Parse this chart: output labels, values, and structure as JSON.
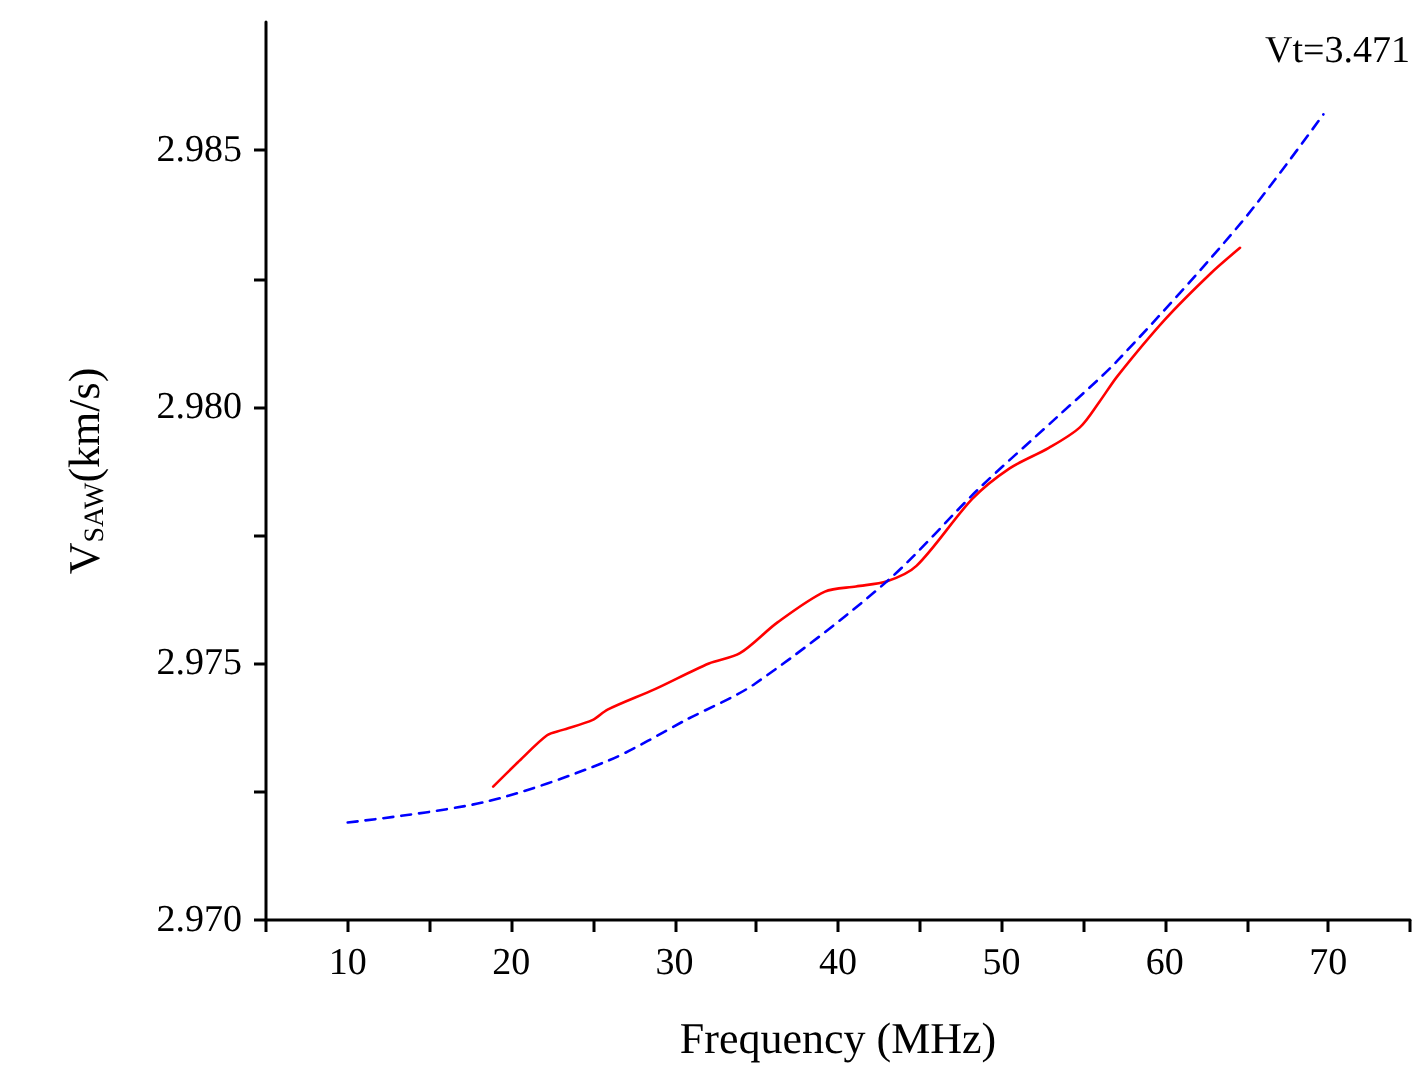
{
  "chart_data": {
    "type": "line",
    "xlabel": "Frequency (MHz)",
    "ylabel": "V$_{SAW}$(km/s)",
    "annotations": [
      "Vt=3.471"
    ],
    "xlim": [
      5,
      75
    ],
    "xticks": [
      {
        "value": 5,
        "label": null
      },
      10,
      {
        "value": 15,
        "label": null
      },
      20,
      {
        "value": 25,
        "label": null
      },
      30,
      {
        "value": 35,
        "label": null
      },
      40,
      {
        "value": 45,
        "label": null
      },
      50,
      {
        "value": 55,
        "label": null
      },
      60,
      {
        "value": 65,
        "label": null
      },
      70,
      {
        "value": 75,
        "label": null
      }
    ],
    "ylim": [
      2.97,
      2.9875
    ],
    "yticks": [
      {
        "value": 2.97,
        "label": "2.970"
      },
      {
        "value": 2.9725,
        "label": null
      },
      {
        "value": 2.975,
        "label": "2.975"
      },
      {
        "value": 2.9775,
        "label": null
      },
      {
        "value": 2.98,
        "label": "2.980"
      },
      {
        "value": 2.9825,
        "label": null
      },
      {
        "value": 2.985,
        "label": "2.985"
      }
    ],
    "marker": "none",
    "series": [
      {
        "color": "#ff0000",
        "line_style": "solid",
        "x": [
          18.9,
          20.5,
          22.2,
          23.1,
          25.0,
          25.9,
          28.8,
          32.1,
          34.0,
          36.3,
          39.2,
          41.1,
          43.0,
          44.8,
          48.2,
          50.5,
          52.9,
          54.8,
          56.0,
          57.1,
          60.0,
          62.8,
          64.6
        ],
        "values": [
          2.9726,
          2.9731,
          2.9736,
          2.9737,
          2.9739,
          2.9741,
          2.9745,
          2.975,
          2.9752,
          2.9758,
          2.9764,
          2.9765,
          2.9766,
          2.9769,
          2.9782,
          2.9788,
          2.9792,
          2.9796,
          2.9801,
          2.9806,
          2.9817,
          2.9826,
          2.9831
        ]
      },
      {
        "color": "#0000ff",
        "line_style": "dashed",
        "x": [
          10,
          18.4,
          25.9,
          30.7,
          34.9,
          43.0,
          48.6,
          53.4,
          57.1,
          64.7,
          69.7
        ],
        "values": [
          2.9719,
          2.9723,
          2.9731,
          2.9739,
          2.9746,
          2.9766,
          2.9784,
          2.9798,
          2.9809,
          2.9836,
          2.9857
        ]
      }
    ]
  }
}
